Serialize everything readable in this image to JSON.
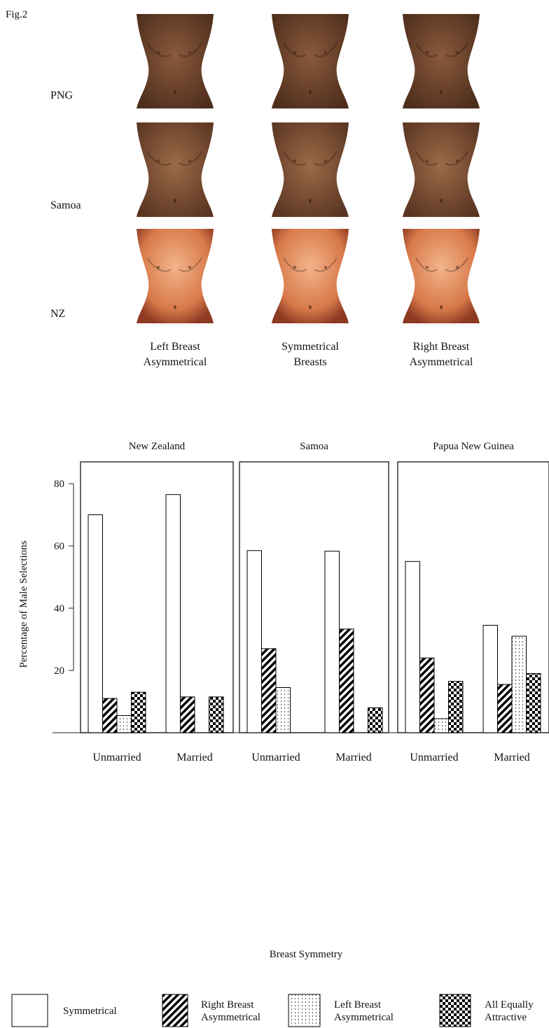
{
  "figure_label": "Fig.2",
  "stimuli": {
    "rows": [
      "PNG",
      "Samoa",
      "NZ"
    ],
    "columns": [
      "Left Breast Asymmetrical",
      "Symmetrical Breasts",
      "Right Breast Asymmetrical"
    ]
  },
  "chart_data": {
    "type": "bar",
    "xlabel": "Breast Symmetry",
    "ylabel": "Percentage of Male Selections",
    "panels": [
      "New Zealand",
      "Samoa",
      "Papua New Guinea"
    ],
    "categories": [
      "Unmarried",
      "Married",
      "Unmarried",
      "Married",
      "Unmarried",
      "Married"
    ],
    "series": [
      {
        "name": "Symmetrical",
        "color": "#ffffff",
        "pattern": "solid",
        "values": [
          70,
          76.5,
          58.5,
          58.3,
          55,
          34.5
        ]
      },
      {
        "name": "Right Breast Asymmetrical",
        "color": "#000000",
        "pattern": "hatch",
        "values": [
          11,
          11.5,
          27,
          33.3,
          24,
          15.5
        ]
      },
      {
        "name": "Left Breast Asymmetrical",
        "color": "#555555",
        "pattern": "dots",
        "values": [
          5.5,
          null,
          14.5,
          null,
          4.5,
          31
        ]
      },
      {
        "name": "All Equally Attractive",
        "color": "#000000",
        "pattern": "checker",
        "values": [
          13,
          11.5,
          null,
          8,
          16.5,
          19
        ]
      }
    ],
    "ylim": [
      0,
      87
    ],
    "yticks": [
      80,
      60,
      40,
      20
    ]
  }
}
